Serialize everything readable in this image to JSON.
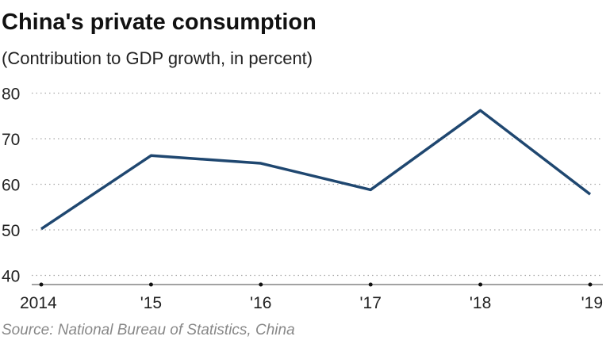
{
  "chart_data": {
    "type": "line",
    "title": "China's private consumption",
    "subtitle": "(Contribution to GDP growth, in percent)",
    "source": "Source: National Bureau of Statistics, China",
    "categories": [
      "2014",
      "'15",
      "'16",
      "'17",
      "'18",
      "'19"
    ],
    "values": [
      50.2,
      66.3,
      64.6,
      58.8,
      76.2,
      57.8
    ],
    "yticks": [
      40,
      50,
      60,
      70,
      80
    ],
    "ylim": [
      38,
      82
    ],
    "grid": true,
    "line_color": "#1f4770"
  }
}
